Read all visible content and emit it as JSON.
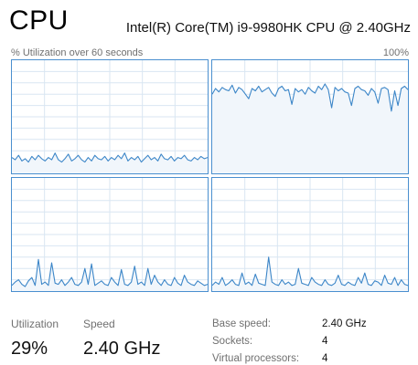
{
  "header": {
    "title": "CPU",
    "cpu_model": "Intel(R) Core(TM) i9-9980HK CPU @ 2.40GHz",
    "graph_caption": "% Utilization over 60 seconds",
    "graph_max": "100%"
  },
  "colors": {
    "graph_line": "#3c86c8",
    "graph_fill": "#f1f6fb",
    "graph_grid": "#d9e6f2",
    "graph_border": "#4a8fcf"
  },
  "chart_data": {
    "type": "area",
    "ylim": [
      0,
      100
    ],
    "xlim": [
      0,
      60
    ],
    "grid": true,
    "series": [
      {
        "values": [
          14,
          12,
          16,
          11,
          13,
          10,
          15,
          12,
          16,
          13,
          11,
          14,
          12,
          18,
          12,
          10,
          13,
          17,
          11,
          13,
          16,
          12,
          10,
          14,
          11,
          16,
          13,
          12,
          15,
          11,
          14,
          12,
          16,
          13,
          18,
          11,
          14,
          12,
          15,
          10,
          13,
          16,
          12,
          14,
          11,
          17,
          13,
          12,
          15,
          11,
          14,
          13,
          16,
          12,
          11,
          14,
          12,
          15,
          13,
          14
        ]
      },
      {
        "values": [
          70,
          75,
          72,
          76,
          74,
          73,
          78,
          71,
          76,
          74,
          70,
          66,
          75,
          73,
          77,
          72,
          74,
          76,
          71,
          68,
          75,
          77,
          73,
          74,
          61,
          75,
          72,
          74,
          70,
          76,
          73,
          71,
          77,
          74,
          79,
          74,
          58,
          76,
          73,
          75,
          72,
          71,
          60,
          75,
          77,
          74,
          73,
          69,
          75,
          72,
          62,
          75,
          76,
          74,
          55,
          73,
          60,
          75,
          77,
          74
        ]
      },
      {
        "values": [
          5,
          8,
          10,
          6,
          4,
          9,
          12,
          5,
          28,
          6,
          8,
          5,
          25,
          7,
          6,
          10,
          5,
          8,
          12,
          6,
          5,
          8,
          20,
          6,
          24,
          5,
          7,
          9,
          6,
          5,
          12,
          8,
          5,
          19,
          6,
          5,
          8,
          22,
          6,
          8,
          5,
          20,
          6,
          14,
          8,
          5,
          10,
          6,
          5,
          12,
          7,
          5,
          14,
          8,
          6,
          5,
          9,
          7,
          5,
          6
        ]
      },
      {
        "values": [
          5,
          8,
          6,
          12,
          5,
          7,
          10,
          6,
          5,
          16,
          6,
          8,
          5,
          15,
          7,
          6,
          5,
          30,
          8,
          6,
          5,
          10,
          6,
          8,
          5,
          6,
          20,
          7,
          6,
          5,
          12,
          8,
          6,
          5,
          10,
          6,
          5,
          7,
          14,
          6,
          5,
          8,
          6,
          5,
          12,
          7,
          16,
          6,
          5,
          9,
          8,
          5,
          14,
          7,
          6,
          12,
          5,
          10,
          6,
          5
        ]
      }
    ]
  },
  "stats": {
    "utilization": {
      "label": "Utilization",
      "value": "29%"
    },
    "speed": {
      "label": "Speed",
      "value": "2.40 GHz"
    }
  },
  "details": [
    {
      "key": "Base speed:",
      "value": "2.40 GHz"
    },
    {
      "key": "Sockets:",
      "value": "4"
    },
    {
      "key": "Virtual processors:",
      "value": "4"
    }
  ]
}
